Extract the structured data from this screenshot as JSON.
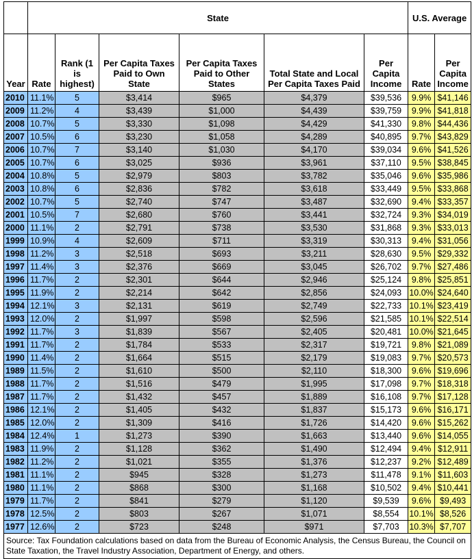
{
  "header": {
    "group_state": "State",
    "group_us": "U.S. Average",
    "columns": [
      "Year",
      "Rate",
      "Rank (1 is highest)",
      "Per Capita Taxes Paid to Own State",
      "Per Capita Taxes Paid to Other States",
      "Total State and Local Per Capita Taxes Paid",
      "Per Capita Income",
      "Rate",
      "Per Capita Income"
    ]
  },
  "colors": {
    "state_key": "#99ccff",
    "state_taxes": "#c0c0c0",
    "us_average": "#ffff99"
  },
  "rows": [
    [
      "2010",
      "11.1%",
      "5",
      "$3,414",
      "$965",
      "$4,379",
      "$39,536",
      "9.9%",
      "$41,146"
    ],
    [
      "2009",
      "11.2%",
      "4",
      "$3,439",
      "$1,000",
      "$4,439",
      "$39,759",
      "9.9%",
      "$41,818"
    ],
    [
      "2008",
      "10.7%",
      "5",
      "$3,330",
      "$1,098",
      "$4,429",
      "$41,330",
      "9.8%",
      "$44,436"
    ],
    [
      "2007",
      "10.5%",
      "6",
      "$3,230",
      "$1,058",
      "$4,289",
      "$40,895",
      "9.7%",
      "$43,829"
    ],
    [
      "2006",
      "10.7%",
      "7",
      "$3,140",
      "$1,030",
      "$4,170",
      "$39,034",
      "9.6%",
      "$41,526"
    ],
    [
      "2005",
      "10.7%",
      "6",
      "$3,025",
      "$936",
      "$3,961",
      "$37,110",
      "9.5%",
      "$38,845"
    ],
    [
      "2004",
      "10.8%",
      "5",
      "$2,979",
      "$803",
      "$3,782",
      "$35,046",
      "9.6%",
      "$35,986"
    ],
    [
      "2003",
      "10.8%",
      "6",
      "$2,836",
      "$782",
      "$3,618",
      "$33,449",
      "9.5%",
      "$33,868"
    ],
    [
      "2002",
      "10.7%",
      "5",
      "$2,740",
      "$747",
      "$3,487",
      "$32,690",
      "9.4%",
      "$33,357"
    ],
    [
      "2001",
      "10.5%",
      "7",
      "$2,680",
      "$760",
      "$3,441",
      "$32,724",
      "9.3%",
      "$34,019"
    ],
    [
      "2000",
      "11.1%",
      "2",
      "$2,791",
      "$738",
      "$3,530",
      "$31,868",
      "9.3%",
      "$33,013"
    ],
    [
      "1999",
      "10.9%",
      "4",
      "$2,609",
      "$711",
      "$3,319",
      "$30,313",
      "9.4%",
      "$31,056"
    ],
    [
      "1998",
      "11.2%",
      "3",
      "$2,518",
      "$693",
      "$3,211",
      "$28,630",
      "9.5%",
      "$29,332"
    ],
    [
      "1997",
      "11.4%",
      "3",
      "$2,376",
      "$669",
      "$3,045",
      "$26,702",
      "9.7%",
      "$27,486"
    ],
    [
      "1996",
      "11.7%",
      "2",
      "$2,301",
      "$644",
      "$2,946",
      "$25,124",
      "9.8%",
      "$25,851"
    ],
    [
      "1995",
      "11.9%",
      "2",
      "$2,214",
      "$642",
      "$2,856",
      "$24,093",
      "10.0%",
      "$24,640"
    ],
    [
      "1994",
      "12.1%",
      "3",
      "$2,131",
      "$619",
      "$2,749",
      "$22,733",
      "10.1%",
      "$23,419"
    ],
    [
      "1993",
      "12.0%",
      "2",
      "$1,997",
      "$598",
      "$2,596",
      "$21,585",
      "10.1%",
      "$22,514"
    ],
    [
      "1992",
      "11.7%",
      "3",
      "$1,839",
      "$567",
      "$2,405",
      "$20,481",
      "10.0%",
      "$21,645"
    ],
    [
      "1991",
      "11.7%",
      "2",
      "$1,784",
      "$533",
      "$2,317",
      "$19,721",
      "9.8%",
      "$21,089"
    ],
    [
      "1990",
      "11.4%",
      "2",
      "$1,664",
      "$515",
      "$2,179",
      "$19,083",
      "9.7%",
      "$20,573"
    ],
    [
      "1989",
      "11.5%",
      "2",
      "$1,610",
      "$500",
      "$2,110",
      "$18,300",
      "9.6%",
      "$19,696"
    ],
    [
      "1988",
      "11.7%",
      "2",
      "$1,516",
      "$479",
      "$1,995",
      "$17,098",
      "9.7%",
      "$18,318"
    ],
    [
      "1987",
      "11.7%",
      "2",
      "$1,432",
      "$457",
      "$1,889",
      "$16,108",
      "9.7%",
      "$17,128"
    ],
    [
      "1986",
      "12.1%",
      "2",
      "$1,405",
      "$432",
      "$1,837",
      "$15,173",
      "9.6%",
      "$16,171"
    ],
    [
      "1985",
      "12.0%",
      "2",
      "$1,309",
      "$416",
      "$1,726",
      "$14,420",
      "9.6%",
      "$15,262"
    ],
    [
      "1984",
      "12.4%",
      "1",
      "$1,273",
      "$390",
      "$1,663",
      "$13,440",
      "9.6%",
      "$14,055"
    ],
    [
      "1983",
      "11.9%",
      "2",
      "$1,128",
      "$362",
      "$1,490",
      "$12,494",
      "9.4%",
      "$12,911"
    ],
    [
      "1982",
      "11.2%",
      "2",
      "$1,021",
      "$355",
      "$1,376",
      "$12,237",
      "9.2%",
      "$12,489"
    ],
    [
      "1981",
      "11.1%",
      "2",
      "$945",
      "$328",
      "$1,273",
      "$11,478",
      "9.1%",
      "$11,603"
    ],
    [
      "1980",
      "11.1%",
      "2",
      "$868",
      "$300",
      "$1,168",
      "$10,502",
      "9.4%",
      "$10,441"
    ],
    [
      "1979",
      "11.7%",
      "2",
      "$841",
      "$279",
      "$1,120",
      "$9,539",
      "9.6%",
      "$9,493"
    ],
    [
      "1978",
      "12.5%",
      "2",
      "$803",
      "$267",
      "$1,071",
      "$8,554",
      "10.1%",
      "$8,526"
    ],
    [
      "1977",
      "12.6%",
      "2",
      "$723",
      "$248",
      "$971",
      "$7,703",
      "10.3%",
      "$7,707"
    ]
  ],
  "source": "Source: Tax Foundation calculations based on data from the Bureau of Economic Analysis, the Census Bureau, the Council on State Taxation, the Travel Industry Association, Department of Energy, and others."
}
